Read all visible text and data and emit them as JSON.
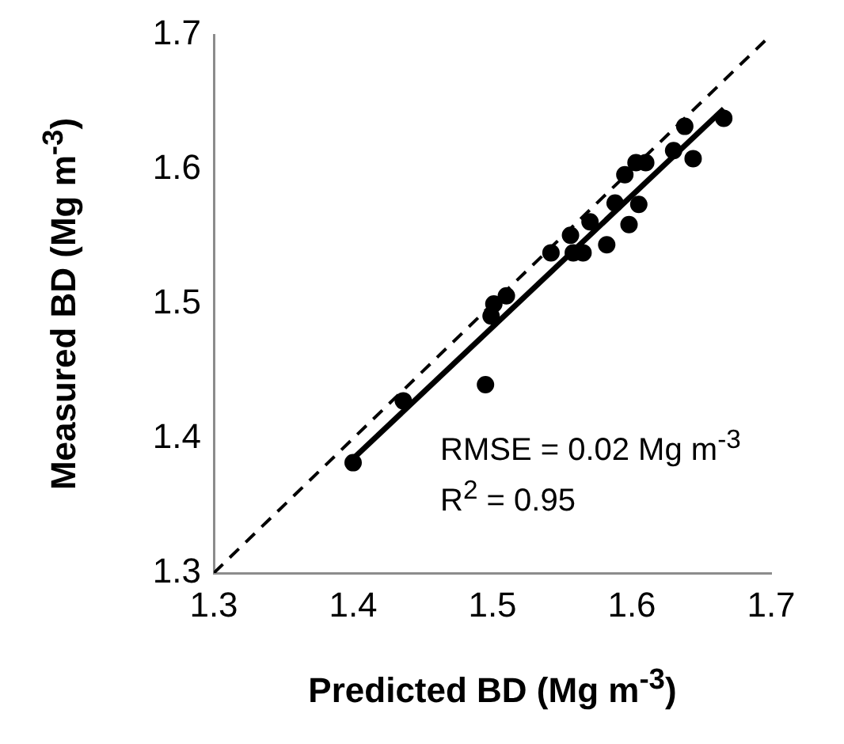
{
  "chart_data": {
    "type": "scatter",
    "xlabel": "Predicted BD (Mg m$^{-3}$)",
    "ylabel": "Measured BD (Mg m$^{-3}$)",
    "annotations": [
      "RMSE = 0.02 Mg m$^{-3}$",
      "R$^{2}$ = 0.95"
    ],
    "xlim": [
      1.3,
      1.7
    ],
    "ylim": [
      1.3,
      1.7
    ],
    "xticks": [
      1.3,
      1.4,
      1.5,
      1.6,
      1.7
    ],
    "yticks": [
      1.3,
      1.4,
      1.5,
      1.6,
      1.7
    ],
    "grid": false,
    "legend": false,
    "marker": "circle",
    "series": [
      {
        "color": "#000000",
        "x": [
          1.4,
          1.436,
          1.495,
          1.499,
          1.501,
          1.51,
          1.542,
          1.556,
          1.558,
          1.565,
          1.582,
          1.57,
          1.588,
          1.598,
          1.605,
          1.595,
          1.603,
          1.61,
          1.63,
          1.638,
          1.644,
          1.666
        ],
        "values": [
          1.382,
          1.428,
          1.44,
          1.491,
          1.5,
          1.506,
          1.538,
          1.551,
          1.538,
          1.538,
          1.544,
          1.561,
          1.575,
          1.559,
          1.574,
          1.596,
          1.605,
          1.605,
          1.614,
          1.632,
          1.608,
          1.638
        ]
      },
      {
        "type": "line",
        "color": "#000000",
        "marker": "none",
        "line_style": "solid",
        "x": [
          1.4,
          1.666
        ],
        "values": [
          1.385,
          1.645
        ]
      },
      {
        "type": "line",
        "color": "#000000",
        "marker": "none",
        "line_style": "dashed",
        "x": [
          1.3,
          1.7
        ],
        "values": [
          1.3,
          1.7
        ]
      }
    ]
  }
}
